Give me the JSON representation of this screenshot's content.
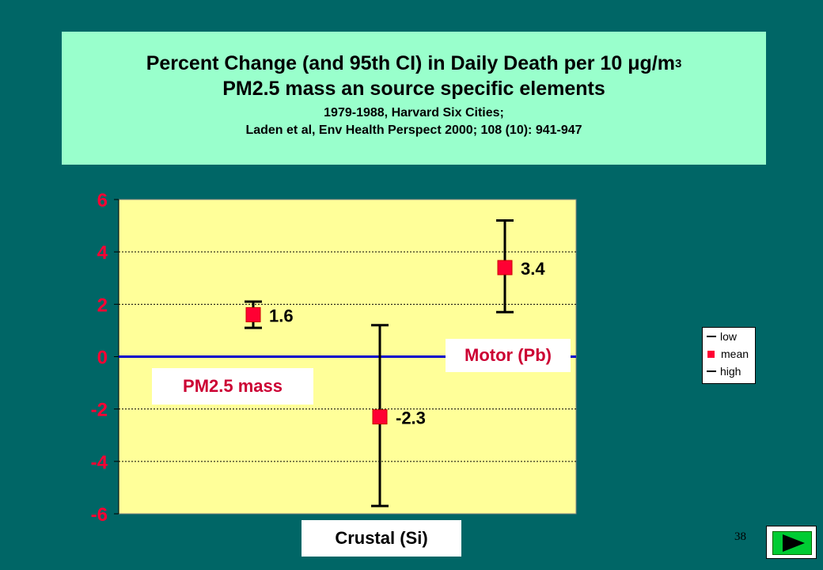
{
  "title": {
    "line1_main": "Percent Change (and 95th CI) in Daily Death per 10 ",
    "line1_unit": "μg/m",
    "line1_sup": "3",
    "line2": "PM2.5 mass an source specific elements",
    "line3": "1979-1988, Harvard Six Cities;",
    "line4": "Laden et al, Env Health Perspect 2000; 108 (10): 941-947"
  },
  "chart_data": {
    "type": "scatter",
    "categories": [
      "PM2.5 mass",
      "Crustal (Si)",
      "Motor (Pb)"
    ],
    "series": [
      {
        "name": "low",
        "values": [
          1.1,
          -5.7,
          1.7
        ]
      },
      {
        "name": "mean",
        "values": [
          1.6,
          -2.3,
          3.4
        ]
      },
      {
        "name": "high",
        "values": [
          2.1,
          1.2,
          5.2
        ]
      }
    ],
    "data_labels": [
      "1.6",
      "-2.3",
      "3.4"
    ],
    "yticks": [
      "6",
      "4",
      "2",
      "0",
      "-2",
      "-4",
      "-6"
    ],
    "ylim": [
      -6,
      6
    ],
    "grid": true,
    "legend_position": "right",
    "colors": {
      "plot_bg": "#FFFF99",
      "mean_marker": "#FF0033",
      "error_bar": "#000000",
      "zero_line": "#0000CC",
      "tick_text": "#FF0033"
    }
  },
  "category_labels": {
    "pm25": "PM2.5 mass",
    "motor": "Motor (Pb)",
    "crustal": "Crustal (Si)"
  },
  "legend": {
    "items": [
      "low",
      "mean",
      "high"
    ]
  },
  "page_number": "38",
  "next_button": {
    "icon": "play-triangle-icon"
  }
}
